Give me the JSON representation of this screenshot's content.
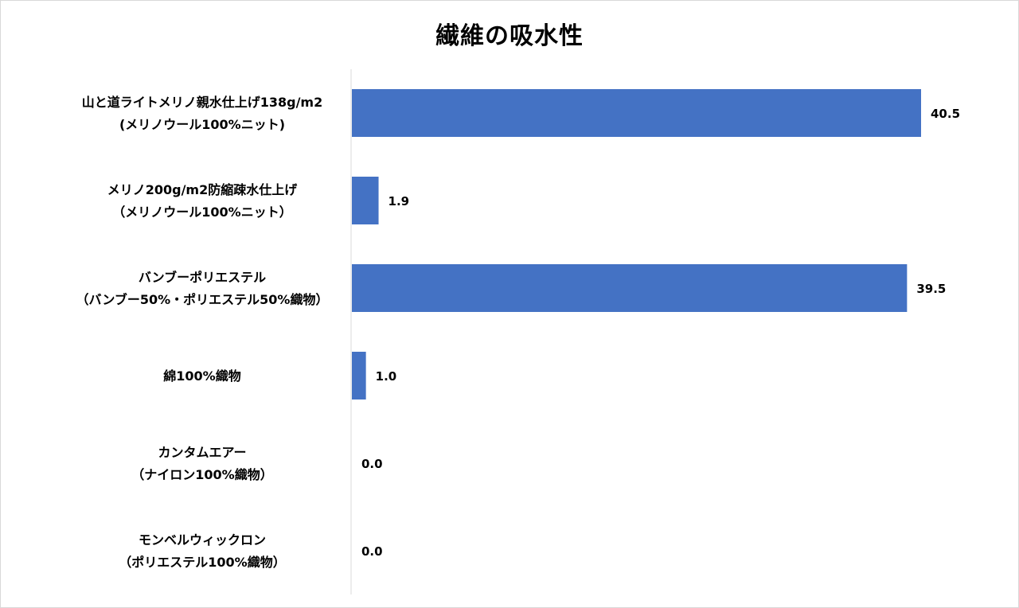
{
  "chart_data": {
    "type": "bar",
    "orientation": "horizontal",
    "title": "繊維の吸水性",
    "xlabel": "",
    "ylabel": "",
    "categories": [
      [
        "山と道ライトメリノ親水仕上げ138g/m2",
        "(メリノウール100%ニット)"
      ],
      [
        "メリノ200g/m2防縮疎水仕上げ",
        "（メリノウール100%ニット）"
      ],
      [
        "バンブーポリエステル",
        "（バンブー50%・ポリエステル50%織物）"
      ],
      [
        "綿100%織物"
      ],
      [
        "カンタムエアー",
        "（ナイロン100%織物）"
      ],
      [
        "モンベルウィックロン",
        "（ポリエステル100%織物）"
      ]
    ],
    "values": [
      40.5,
      1.9,
      39.5,
      1.0,
      0.0,
      0.0
    ],
    "value_labels": [
      "40.5",
      "1.9",
      "39.5",
      "1.0",
      "0.0",
      "0.0"
    ],
    "xlim": [
      0,
      45
    ],
    "grid": false,
    "legend": "none",
    "bar_color": "#4472C4",
    "axis_color": "#D9D9D9"
  }
}
